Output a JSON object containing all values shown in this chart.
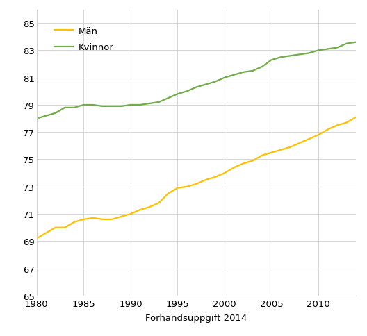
{
  "years": [
    1980,
    1981,
    1982,
    1983,
    1984,
    1985,
    1986,
    1987,
    1988,
    1989,
    1990,
    1991,
    1992,
    1993,
    1994,
    1995,
    1996,
    1997,
    1998,
    1999,
    2000,
    2001,
    2002,
    2003,
    2004,
    2005,
    2006,
    2007,
    2008,
    2009,
    2010,
    2011,
    2012,
    2013,
    2014
  ],
  "man": [
    69.2,
    69.6,
    70.0,
    70.0,
    70.4,
    70.6,
    70.7,
    70.6,
    70.6,
    70.8,
    71.0,
    71.3,
    71.5,
    71.8,
    72.5,
    72.9,
    73.0,
    73.2,
    73.5,
    73.7,
    74.0,
    74.4,
    74.7,
    74.9,
    75.3,
    75.5,
    75.7,
    75.9,
    76.2,
    76.5,
    76.8,
    77.2,
    77.5,
    77.7,
    78.1
  ],
  "kvinnor": [
    78.0,
    78.2,
    78.4,
    78.8,
    78.8,
    79.0,
    79.0,
    78.9,
    78.9,
    78.9,
    79.0,
    79.0,
    79.1,
    79.2,
    79.5,
    79.8,
    80.0,
    80.3,
    80.5,
    80.7,
    81.0,
    81.2,
    81.4,
    81.5,
    81.8,
    82.3,
    82.5,
    82.6,
    82.7,
    82.8,
    83.0,
    83.1,
    83.2,
    83.5,
    83.6
  ],
  "man_color": "#FFC000",
  "kvinnor_color": "#70AD47",
  "xlabel": "Förhandsuppgift 2014",
  "ylim": [
    65,
    86
  ],
  "yticks": [
    65,
    67,
    69,
    71,
    73,
    75,
    77,
    79,
    81,
    83,
    85
  ],
  "xticks": [
    1980,
    1985,
    1990,
    1995,
    2000,
    2005,
    2010
  ],
  "legend_man": "Män",
  "legend_kvinnor": "Kvinnor",
  "background_color": "#ffffff",
  "grid_color": "#d0d0d0",
  "line_width": 1.6
}
